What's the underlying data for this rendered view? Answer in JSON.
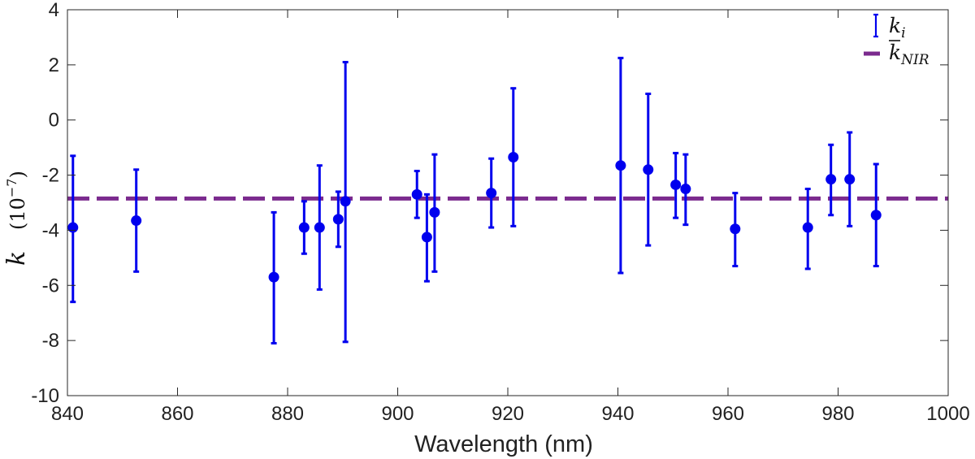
{
  "chart_data": {
    "type": "scatter",
    "title": "",
    "xlabel": "Wavelength (nm)",
    "ylabel": {
      "symbol": "k",
      "scale_open": "(10",
      "scale_exp": "−7",
      "scale_close": ")"
    },
    "xlim": [
      840,
      1000
    ],
    "ylim": [
      -10,
      4
    ],
    "xticks": [
      840,
      860,
      880,
      900,
      920,
      940,
      960,
      980,
      1000
    ],
    "yticks": [
      -10,
      -8,
      -6,
      -4,
      -2,
      0,
      2,
      4
    ],
    "xtick_labels": [
      "840",
      "860",
      "880",
      "900",
      "920",
      "940",
      "960",
      "980",
      "1000"
    ],
    "ytick_labels": [
      "-10",
      "-8",
      "-6",
      "-4",
      "-2",
      "0",
      "2",
      "4"
    ],
    "grid": false,
    "legend_position": "top-right",
    "series": [
      {
        "name": "k_i",
        "kind": "errorbar",
        "color": "#0000ee",
        "points": [
          {
            "x": 841.0,
            "y": -3.9,
            "lo": -6.6,
            "hi": -1.3
          },
          {
            "x": 852.5,
            "y": -3.65,
            "lo": -5.5,
            "hi": -1.8
          },
          {
            "x": 877.5,
            "y": -5.7,
            "lo": -8.1,
            "hi": -3.35
          },
          {
            "x": 883.0,
            "y": -3.9,
            "lo": -4.85,
            "hi": -2.95
          },
          {
            "x": 885.8,
            "y": -3.9,
            "lo": -6.15,
            "hi": -1.65
          },
          {
            "x": 889.2,
            "y": -3.6,
            "lo": -4.6,
            "hi": -2.6
          },
          {
            "x": 890.5,
            "y": -2.95,
            "lo": -8.05,
            "hi": 2.1
          },
          {
            "x": 903.5,
            "y": -2.7,
            "lo": -3.55,
            "hi": -1.85
          },
          {
            "x": 905.3,
            "y": -4.25,
            "lo": -5.85,
            "hi": -2.7
          },
          {
            "x": 906.7,
            "y": -3.35,
            "lo": -5.5,
            "hi": -1.25
          },
          {
            "x": 917.0,
            "y": -2.65,
            "lo": -3.9,
            "hi": -1.4
          },
          {
            "x": 921.0,
            "y": -1.35,
            "lo": -3.85,
            "hi": 1.15
          },
          {
            "x": 940.5,
            "y": -1.65,
            "lo": -5.55,
            "hi": 2.25
          },
          {
            "x": 945.5,
            "y": -1.8,
            "lo": -4.55,
            "hi": 0.95
          },
          {
            "x": 950.5,
            "y": -2.35,
            "lo": -3.55,
            "hi": -1.2
          },
          {
            "x": 952.3,
            "y": -2.5,
            "lo": -3.8,
            "hi": -1.25
          },
          {
            "x": 961.3,
            "y": -3.95,
            "lo": -5.3,
            "hi": -2.65
          },
          {
            "x": 974.5,
            "y": -3.9,
            "lo": -5.4,
            "hi": -2.5
          },
          {
            "x": 978.7,
            "y": -2.15,
            "lo": -3.45,
            "hi": -0.9
          },
          {
            "x": 982.1,
            "y": -2.15,
            "lo": -3.85,
            "hi": -0.45
          },
          {
            "x": 986.9,
            "y": -3.45,
            "lo": -5.3,
            "hi": -1.6
          }
        ]
      },
      {
        "name": "k̄_NIR",
        "kind": "hline",
        "color": "#7b2a8e",
        "style": "dashed",
        "y": -2.85
      }
    ],
    "legend": [
      {
        "symbol": "k",
        "sub": "i"
      },
      {
        "symbol": "k",
        "sub": "NIR",
        "bar": true
      }
    ]
  }
}
